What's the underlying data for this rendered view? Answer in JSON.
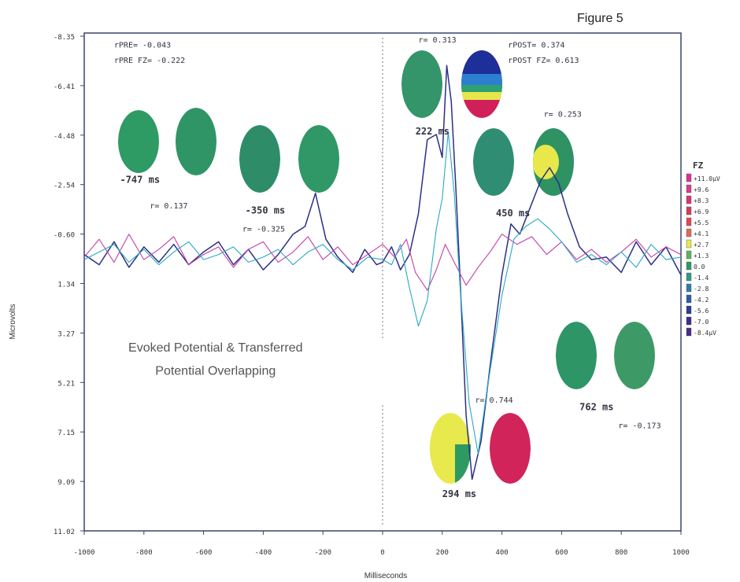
{
  "figure_label": "Figure 5",
  "chart_data": {
    "type": "line",
    "title": "",
    "xlabel": "Milliseconds",
    "ylabel": "Microvolts",
    "xlim": [
      -1000,
      1000
    ],
    "ylim": [
      -8.35,
      11.02
    ],
    "y_inverted": true,
    "x_ticks": [
      "-1000",
      "-800",
      "-600",
      "-400",
      "-200",
      "0",
      "200",
      "400",
      "600",
      "800",
      "1000"
    ],
    "y_ticks": [
      "-8.35",
      "-6.41",
      "-4.48",
      "-2.54",
      "-0.60",
      "1.34",
      "3.27",
      "5.21",
      "7.15",
      "9.09",
      "11.02"
    ],
    "grid": false,
    "series": [
      {
        "color": "#2b2f86",
        "x": [
          -1000,
          -950,
          -900,
          -850,
          -800,
          -750,
          -700,
          -650,
          -600,
          -550,
          -500,
          -450,
          -400,
          -350,
          -300,
          -260,
          -225,
          -190,
          -150,
          -100,
          -60,
          -20,
          0,
          30,
          60,
          90,
          120,
          150,
          180,
          200,
          215,
          230,
          245,
          260,
          280,
          300,
          330,
          360,
          400,
          430,
          460,
          500,
          530,
          560,
          590,
          620,
          660,
          700,
          750,
          800,
          850,
          900,
          950,
          1000
        ],
        "y": [
          0.2,
          0.6,
          -0.3,
          0.7,
          -0.1,
          0.5,
          -0.2,
          0.6,
          0.1,
          -0.3,
          0.6,
          0.0,
          0.8,
          0.2,
          -0.6,
          -0.9,
          -2.2,
          -0.4,
          0.3,
          0.9,
          0.0,
          0.6,
          0.5,
          -0.1,
          0.8,
          0.2,
          -1.4,
          -4.3,
          -4.5,
          -3.6,
          -7.2,
          -5.8,
          -2.5,
          1.2,
          6.5,
          9.0,
          7.5,
          4.6,
          1.0,
          -1.0,
          -0.6,
          -1.8,
          -2.7,
          -3.2,
          -2.6,
          -1.4,
          -0.1,
          0.4,
          0.3,
          0.9,
          -0.3,
          0.6,
          -0.1,
          1.0
        ]
      },
      {
        "color": "#c63ea6",
        "x": [
          -1000,
          -950,
          -900,
          -850,
          -800,
          -750,
          -700,
          -650,
          -600,
          -550,
          -500,
          -450,
          -400,
          -350,
          -300,
          -250,
          -200,
          -150,
          -100,
          -50,
          0,
          40,
          80,
          110,
          150,
          180,
          210,
          240,
          280,
          320,
          360,
          400,
          450,
          500,
          550,
          600,
          650,
          700,
          750,
          800,
          850,
          900,
          950,
          1000
        ],
        "y": [
          0.3,
          -0.4,
          0.5,
          -0.6,
          0.4,
          0.0,
          -0.5,
          0.6,
          0.2,
          -0.1,
          0.7,
          0.0,
          -0.3,
          0.5,
          0.1,
          -0.5,
          0.4,
          -0.1,
          0.6,
          0.2,
          -0.2,
          0.3,
          -0.4,
          0.9,
          1.6,
          0.8,
          -0.2,
          0.5,
          1.4,
          0.7,
          0.1,
          -0.6,
          -0.2,
          -0.5,
          0.2,
          -0.3,
          0.4,
          0.0,
          0.5,
          0.1,
          -0.4,
          0.3,
          -0.1,
          0.2
        ]
      },
      {
        "color": "#2aa9c4",
        "x": [
          -1000,
          -950,
          -900,
          -850,
          -800,
          -750,
          -700,
          -650,
          -600,
          -550,
          -500,
          -450,
          -400,
          -350,
          -300,
          -250,
          -200,
          -150,
          -100,
          -50,
          0,
          30,
          60,
          90,
          120,
          150,
          180,
          200,
          220,
          240,
          260,
          290,
          320,
          350,
          400,
          440,
          480,
          520,
          560,
          600,
          650,
          700,
          750,
          800,
          850,
          900,
          950,
          1000
        ],
        "y": [
          0.4,
          0.1,
          -0.2,
          0.5,
          0.0,
          0.6,
          0.1,
          -0.3,
          0.4,
          0.2,
          -0.1,
          0.5,
          0.3,
          0.0,
          0.6,
          0.1,
          -0.2,
          0.4,
          0.8,
          0.3,
          0.4,
          0.6,
          -0.2,
          1.5,
          3.0,
          2.0,
          -0.8,
          -2.0,
          -4.6,
          -2.2,
          1.5,
          6.0,
          8.0,
          5.5,
          1.8,
          -0.4,
          -0.9,
          -1.2,
          -0.8,
          -0.3,
          0.5,
          0.2,
          0.6,
          0.1,
          0.7,
          -0.2,
          0.4,
          0.3
        ]
      }
    ],
    "annotations": [
      {
        "text": "rPRE= -0.043",
        "x": -900,
        "y": -7.9
      },
      {
        "text": "rPRE FZ= -0.222",
        "x": -900,
        "y": -7.3
      },
      {
        "text": "r= 0.313",
        "x": 120,
        "y": -8.1
      },
      {
        "text": "rPOST= 0.374",
        "x": 420,
        "y": -7.9
      },
      {
        "text": "rPOST FZ= 0.613",
        "x": 420,
        "y": -7.3
      },
      {
        "text": "r= 0.253",
        "x": 540,
        "y": -5.2
      },
      {
        "text": "222 ms",
        "x": 110,
        "y": -4.5
      },
      {
        "text": "-747 ms",
        "x": -880,
        "y": -2.6
      },
      {
        "text": "-350 ms",
        "x": -460,
        "y": -1.4
      },
      {
        "text": "450 ms",
        "x": 380,
        "y": -1.3
      },
      {
        "text": "r= 0.137",
        "x": -780,
        "y": -1.6
      },
      {
        "text": "r= -0.325",
        "x": -470,
        "y": -0.7
      },
      {
        "text": "r= 0.744",
        "x": 310,
        "y": 6.0
      },
      {
        "text": "762 ms",
        "x": 660,
        "y": 6.3
      },
      {
        "text": "r= -0.173",
        "x": 790,
        "y": 7.0
      },
      {
        "text": "294 ms",
        "x": 200,
        "y": 9.7
      },
      {
        "text": "Evoked Potential & Transferred",
        "x": -560,
        "y": 4.0
      },
      {
        "text": "Potential Overlapping",
        "x": -560,
        "y": 4.9
      }
    ],
    "topomaps": [
      {
        "label": "-747 ms",
        "fill": "#2e9a64"
      },
      {
        "label": "-747 ms",
        "fill": "#2f9566"
      },
      {
        "label": "-350 ms",
        "fill": "#2e8d68"
      },
      {
        "label": "-350 ms",
        "fill": "#2f9866"
      },
      {
        "label": "222 ms",
        "fill": "#34956a"
      },
      {
        "label": "222 ms",
        "fill": "multi"
      },
      {
        "label": "450 ms",
        "fill": "#2f8d73"
      },
      {
        "label": "450 ms",
        "fill": "multi"
      },
      {
        "label": "762 ms",
        "fill": "#2e9567"
      },
      {
        "label": "762 ms",
        "fill": "#3d9a66"
      },
      {
        "label": "294 ms",
        "fill": "multi"
      },
      {
        "label": "294 ms",
        "fill": "#d1245a"
      }
    ],
    "colorscale": {
      "title": "FZ",
      "labels": [
        "+11.0μV",
        "+9.6",
        "+8.3",
        "+6.9",
        "+5.5",
        "+4.1",
        "+2.7",
        "+1.3",
        "0.0",
        "-1.4",
        "-2.8",
        "-4.2",
        "-5.6",
        "-7.0",
        "-8.4μV"
      ],
      "colors": [
        "#e02d96",
        "#dc3a8c",
        "#d83577",
        "#d53b5e",
        "#e04758",
        "#e06a52",
        "#e7e84a",
        "#57b55c",
        "#2e9a62",
        "#2e9a88",
        "#2b7ea8",
        "#2c5ea6",
        "#2b3e94",
        "#3a2f8f",
        "#4a2a8d"
      ]
    }
  }
}
